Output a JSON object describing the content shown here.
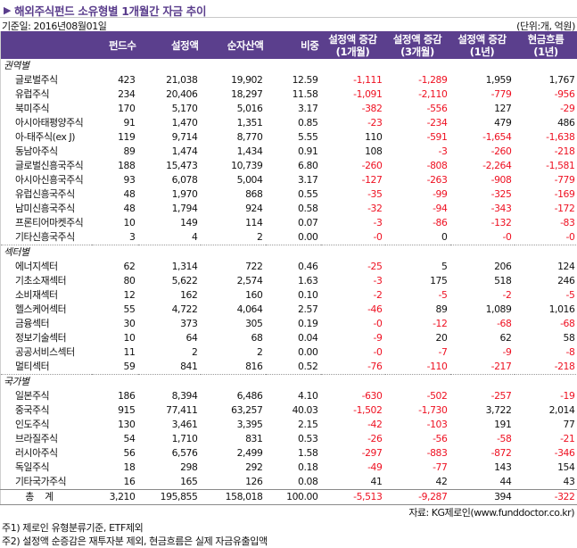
{
  "header": {
    "title": "해외주식펀드 소유형별 1개월간 자금 추이",
    "title_icon": "triangle-right-icon",
    "base_date": "기준일: 2016년08월01일",
    "unit": "(단위:개, 억원)"
  },
  "colors": {
    "header_bg": "#5b3f8d",
    "title_text": "#5a3d8c",
    "negative": "#ee1122"
  },
  "table": {
    "columns": [
      {
        "line1": "",
        "line2": ""
      },
      {
        "line1": "펀드수",
        "line2": ""
      },
      {
        "line1": "설정액",
        "line2": ""
      },
      {
        "line1": "순자산액",
        "line2": ""
      },
      {
        "line1": "비중",
        "line2": ""
      },
      {
        "line1": "설정액 증감",
        "line2": "(1개월)"
      },
      {
        "line1": "설정액 증감",
        "line2": "(3개월)"
      },
      {
        "line1": "설정액 증감",
        "line2": "(1년)"
      },
      {
        "line1": "현금흐름",
        "line2": "(1년)"
      }
    ],
    "groups": [
      {
        "label": "권역별",
        "rows": [
          {
            "name": "글로벌주식",
            "funds": "423",
            "setting": "21,038",
            "net_assets": "19,902",
            "weight": "12.59",
            "chg_1m": "-1,111",
            "chg_3m": "-1,289",
            "chg_1y": "1,959",
            "cashflow_1y": "1,767"
          },
          {
            "name": "유럽주식",
            "funds": "234",
            "setting": "20,406",
            "net_assets": "18,297",
            "weight": "11.58",
            "chg_1m": "-1,091",
            "chg_3m": "-2,110",
            "chg_1y": "-779",
            "cashflow_1y": "-956"
          },
          {
            "name": "북미주식",
            "funds": "170",
            "setting": "5,170",
            "net_assets": "5,016",
            "weight": "3.17",
            "chg_1m": "-382",
            "chg_3m": "-556",
            "chg_1y": "127",
            "cashflow_1y": "-29"
          },
          {
            "name": "아시아태평양주식",
            "funds": "91",
            "setting": "1,470",
            "net_assets": "1,351",
            "weight": "0.85",
            "chg_1m": "-23",
            "chg_3m": "-234",
            "chg_1y": "479",
            "cashflow_1y": "486"
          },
          {
            "name": "아-태주식(ex J)",
            "funds": "119",
            "setting": "9,714",
            "net_assets": "8,770",
            "weight": "5.55",
            "chg_1m": "110",
            "chg_3m": "-591",
            "chg_1y": "-1,654",
            "cashflow_1y": "-1,638"
          },
          {
            "name": "동남아주식",
            "funds": "89",
            "setting": "1,474",
            "net_assets": "1,434",
            "weight": "0.91",
            "chg_1m": "108",
            "chg_3m": "-3",
            "chg_1y": "-260",
            "cashflow_1y": "-218"
          },
          {
            "name": "글로벌신흥국주식",
            "funds": "188",
            "setting": "15,473",
            "net_assets": "10,739",
            "weight": "6.80",
            "chg_1m": "-260",
            "chg_3m": "-808",
            "chg_1y": "-2,264",
            "cashflow_1y": "-1,581"
          },
          {
            "name": "아시아신흥국주식",
            "funds": "93",
            "setting": "6,078",
            "net_assets": "5,004",
            "weight": "3.17",
            "chg_1m": "-127",
            "chg_3m": "-263",
            "chg_1y": "-908",
            "cashflow_1y": "-779"
          },
          {
            "name": "유럽신흥국주식",
            "funds": "48",
            "setting": "1,970",
            "net_assets": "868",
            "weight": "0.55",
            "chg_1m": "-35",
            "chg_3m": "-99",
            "chg_1y": "-325",
            "cashflow_1y": "-169"
          },
          {
            "name": "남미신흥국주식",
            "funds": "48",
            "setting": "1,794",
            "net_assets": "924",
            "weight": "0.58",
            "chg_1m": "-32",
            "chg_3m": "-94",
            "chg_1y": "-343",
            "cashflow_1y": "-172"
          },
          {
            "name": "프론티어마켓주식",
            "funds": "10",
            "setting": "149",
            "net_assets": "114",
            "weight": "0.07",
            "chg_1m": "-3",
            "chg_3m": "-86",
            "chg_1y": "-132",
            "cashflow_1y": "-83"
          },
          {
            "name": "기타신흥국주식",
            "funds": "3",
            "setting": "4",
            "net_assets": "2",
            "weight": "0.00",
            "chg_1m": "-0",
            "chg_3m": "0",
            "chg_1y": "-0",
            "cashflow_1y": "-0"
          }
        ]
      },
      {
        "label": "섹터별",
        "rows": [
          {
            "name": "에너지섹터",
            "funds": "62",
            "setting": "1,314",
            "net_assets": "722",
            "weight": "0.46",
            "chg_1m": "-25",
            "chg_3m": "5",
            "chg_1y": "206",
            "cashflow_1y": "124"
          },
          {
            "name": "기초소재섹터",
            "funds": "80",
            "setting": "5,622",
            "net_assets": "2,574",
            "weight": "1.63",
            "chg_1m": "-3",
            "chg_3m": "175",
            "chg_1y": "518",
            "cashflow_1y": "246"
          },
          {
            "name": "소비재섹터",
            "funds": "12",
            "setting": "162",
            "net_assets": "160",
            "weight": "0.10",
            "chg_1m": "-2",
            "chg_3m": "-5",
            "chg_1y": "-2",
            "cashflow_1y": "-5"
          },
          {
            "name": "헬스케어섹터",
            "funds": "55",
            "setting": "4,722",
            "net_assets": "4,064",
            "weight": "2.57",
            "chg_1m": "-46",
            "chg_3m": "89",
            "chg_1y": "1,089",
            "cashflow_1y": "1,016"
          },
          {
            "name": "금융섹터",
            "funds": "30",
            "setting": "373",
            "net_assets": "305",
            "weight": "0.19",
            "chg_1m": "-0",
            "chg_3m": "-12",
            "chg_1y": "-68",
            "cashflow_1y": "-68"
          },
          {
            "name": "정보기술섹터",
            "funds": "10",
            "setting": "64",
            "net_assets": "68",
            "weight": "0.04",
            "chg_1m": "-9",
            "chg_3m": "20",
            "chg_1y": "62",
            "cashflow_1y": "58"
          },
          {
            "name": "공공서비스섹터",
            "funds": "11",
            "setting": "2",
            "net_assets": "2",
            "weight": "0.00",
            "chg_1m": "-0",
            "chg_3m": "-7",
            "chg_1y": "-9",
            "cashflow_1y": "-8"
          },
          {
            "name": "멀티섹터",
            "funds": "59",
            "setting": "841",
            "net_assets": "816",
            "weight": "0.52",
            "chg_1m": "-76",
            "chg_3m": "-110",
            "chg_1y": "-217",
            "cashflow_1y": "-218"
          }
        ]
      },
      {
        "label": "국가별",
        "rows": [
          {
            "name": "일본주식",
            "funds": "186",
            "setting": "8,394",
            "net_assets": "6,486",
            "weight": "4.10",
            "chg_1m": "-630",
            "chg_3m": "-502",
            "chg_1y": "-257",
            "cashflow_1y": "-19"
          },
          {
            "name": "중국주식",
            "funds": "915",
            "setting": "77,411",
            "net_assets": "63,257",
            "weight": "40.03",
            "chg_1m": "-1,502",
            "chg_3m": "-1,730",
            "chg_1y": "3,722",
            "cashflow_1y": "2,014"
          },
          {
            "name": "인도주식",
            "funds": "130",
            "setting": "3,461",
            "net_assets": "3,395",
            "weight": "2.15",
            "chg_1m": "-42",
            "chg_3m": "-103",
            "chg_1y": "191",
            "cashflow_1y": "77"
          },
          {
            "name": "브라질주식",
            "funds": "54",
            "setting": "1,710",
            "net_assets": "831",
            "weight": "0.53",
            "chg_1m": "-26",
            "chg_3m": "-56",
            "chg_1y": "-58",
            "cashflow_1y": "-21"
          },
          {
            "name": "러시아주식",
            "funds": "56",
            "setting": "6,576",
            "net_assets": "2,499",
            "weight": "1.58",
            "chg_1m": "-297",
            "chg_3m": "-883",
            "chg_1y": "-872",
            "cashflow_1y": "-346"
          },
          {
            "name": "독일주식",
            "funds": "18",
            "setting": "298",
            "net_assets": "292",
            "weight": "0.18",
            "chg_1m": "-49",
            "chg_3m": "-77",
            "chg_1y": "143",
            "cashflow_1y": "154"
          },
          {
            "name": "기타국가주식",
            "funds": "16",
            "setting": "165",
            "net_assets": "126",
            "weight": "0.08",
            "chg_1m": "41",
            "chg_3m": "42",
            "chg_1y": "44",
            "cashflow_1y": "43"
          }
        ]
      }
    ],
    "total": {
      "name": "총계",
      "funds": "3,210",
      "setting": "195,855",
      "net_assets": "158,018",
      "weight": "100.00",
      "chg_1m": "-5,513",
      "chg_3m": "-9,287",
      "chg_1y": "394",
      "cashflow_1y": "-322"
    }
  },
  "footer": {
    "source": "자료: KG제로인(www.funddoctor.co.kr)",
    "note1": "주1) 제로인 유형분류기준, ETF제외",
    "note2": "주2) 설정액 순증감은 재투자분 제외, 현금흐름은 실제 자금유출입액"
  }
}
